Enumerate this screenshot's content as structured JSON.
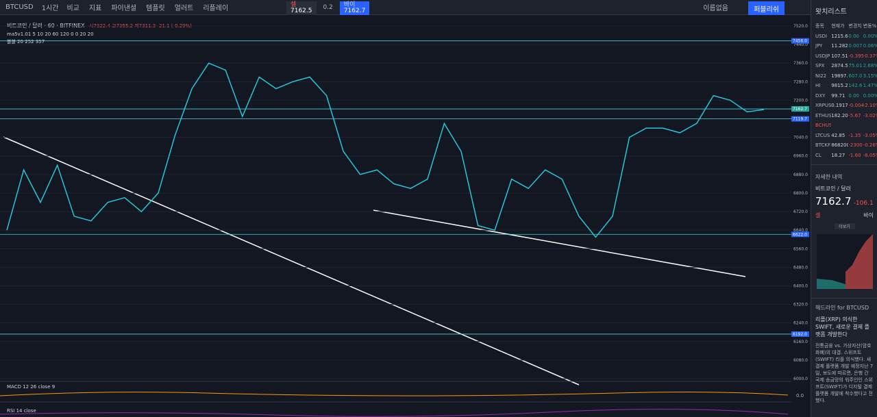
{
  "toolbar": {
    "symbol": "BTCUSD",
    "interval": "1시간",
    "items": [
      "비교",
      "지표",
      "파이낸셜",
      "템플릿",
      "얼러트",
      "리플레이"
    ],
    "sell": "7162.5",
    "spread": "0.2",
    "buy": "7162.7",
    "sell_label": "셀",
    "buy_label": "바이",
    "layout": "이름없음",
    "publish": "퍼블리쉬"
  },
  "legend": {
    "title": "비트코인 / 달러 · 60 · BITFINEX",
    "ohlc": "시7322.4 고7355.2 저7311.3 -21.1 (-0.29%)",
    "ma": "ma5v1.01 5 10 20 60 120 0 0 20 20",
    "bb": "볼블 20 252 357"
  },
  "chart_data": {
    "type": "line",
    "color": "#26c6da",
    "values": [
      6640,
      6900,
      6760,
      6920,
      6700,
      6680,
      6760,
      6780,
      6720,
      6800,
      7050,
      7250,
      7360,
      7330,
      7130,
      7300,
      7250,
      7280,
      7300,
      7220,
      6980,
      6880,
      6900,
      6840,
      6820,
      6860,
      7100,
      6980,
      6660,
      6640,
      6860,
      6820,
      6900,
      6860,
      6700,
      6610,
      6700,
      7040,
      7080,
      7080,
      7060,
      7100,
      7220,
      7200,
      7150,
      7160
    ],
    "ylim": [
      6000,
      7520
    ],
    "yticks": [
      {
        "value": 7520,
        "label": "7520.0"
      },
      {
        "value": 7440,
        "label": "7440.0"
      },
      {
        "value": 7360,
        "label": "7360.0"
      },
      {
        "value": 7280,
        "label": "7280.0"
      },
      {
        "value": 7200,
        "label": "7200.0"
      },
      {
        "value": 7120,
        "label": "7120.0"
      },
      {
        "value": 7040,
        "label": "7040.0"
      },
      {
        "value": 6960,
        "label": "6960.0"
      },
      {
        "value": 6880,
        "label": "6880.0"
      },
      {
        "value": 6800,
        "label": "6800.0"
      },
      {
        "value": 6720,
        "label": "6720.0"
      },
      {
        "value": 6640,
        "label": "6640.0"
      },
      {
        "value": 6560,
        "label": "6560.0"
      },
      {
        "value": 6480,
        "label": "6480.0"
      },
      {
        "value": 6400,
        "label": "6400.0"
      },
      {
        "value": 6320,
        "label": "6320.0"
      },
      {
        "value": 6240,
        "label": "6240.0"
      },
      {
        "value": 6160,
        "label": "6160.0"
      },
      {
        "value": 6080,
        "label": "6080.0"
      },
      {
        "value": 6000,
        "label": "6000.0"
      }
    ],
    "levels": [
      {
        "value": 7456,
        "label": "7456.0"
      },
      {
        "value": 7162.7,
        "label": "7162.7"
      },
      {
        "value": 7119.7,
        "label": "7119.7"
      },
      {
        "value": 6622,
        "label": "6622.0"
      },
      {
        "value": 6192,
        "label": "6192.0"
      }
    ],
    "grid": true
  },
  "indicators": {
    "macd": "MACD 12 26 close 9",
    "macd_zero": "0.0",
    "rsi": "RSI 14 close"
  },
  "watchlist": {
    "title": "왓치리스트",
    "header": [
      "종목",
      "현재가",
      "변경치",
      "변동%"
    ],
    "rows": [
      [
        "USDI",
        "1215.6",
        "0.00",
        "0.00%"
      ],
      [
        "JPY",
        "11.282",
        "0.007",
        "0.06%"
      ],
      [
        "USDJP",
        "107.51",
        "-0.395",
        "-0.37%"
      ],
      [
        "SPX",
        "2874.5",
        "75.01",
        "2.68%"
      ],
      [
        "NI22",
        "19897.",
        "607.0",
        "3.15%"
      ],
      [
        "HI",
        "9815.2",
        "142.6",
        "1.47%"
      ],
      [
        "DXY",
        "99.71",
        "0.00",
        "0.00%"
      ],
      [
        "XRPUS",
        "0.1917",
        "-0.004",
        "-2.10%"
      ],
      [
        "ETHUS",
        "182.20",
        "-5.67",
        "-3.02%"
      ],
      [
        "BCHUS",
        "",
        "",
        ""
      ],
      [
        "LTCUS",
        "42.85",
        "-1.35",
        "-3.05%"
      ],
      [
        "BTCKF",
        "868200",
        "-2300",
        "-0.26%"
      ],
      [
        "CL",
        "18.27",
        "-1.60",
        "-8.05%"
      ]
    ]
  },
  "details": {
    "title": "자세한 내역",
    "name": "비트코인 / 달러",
    "price": "7162.7",
    "change": "-106.1",
    "sell": "셀",
    "buy": "바이",
    "more": "더보기"
  },
  "headlines": {
    "title": "헤드라인 for BTCUSD",
    "headline": "리플(XRP) 의식한 SWIFT, 새로운 결제 플랫폼 개발한다",
    "body": "전통금융 vs. 가상자산(암호화폐)의 대결. 스위프트(SWIFT) 리플 의식했다. 새 결제 플랫폼 개발 예정지난 7일, 보도에 따르면, 은행 간 국제 송금망의 워주인인 스위프트(SWIFT)가 디지털 결제 플랫폼 개발에 착수했다고 전했다."
  }
}
